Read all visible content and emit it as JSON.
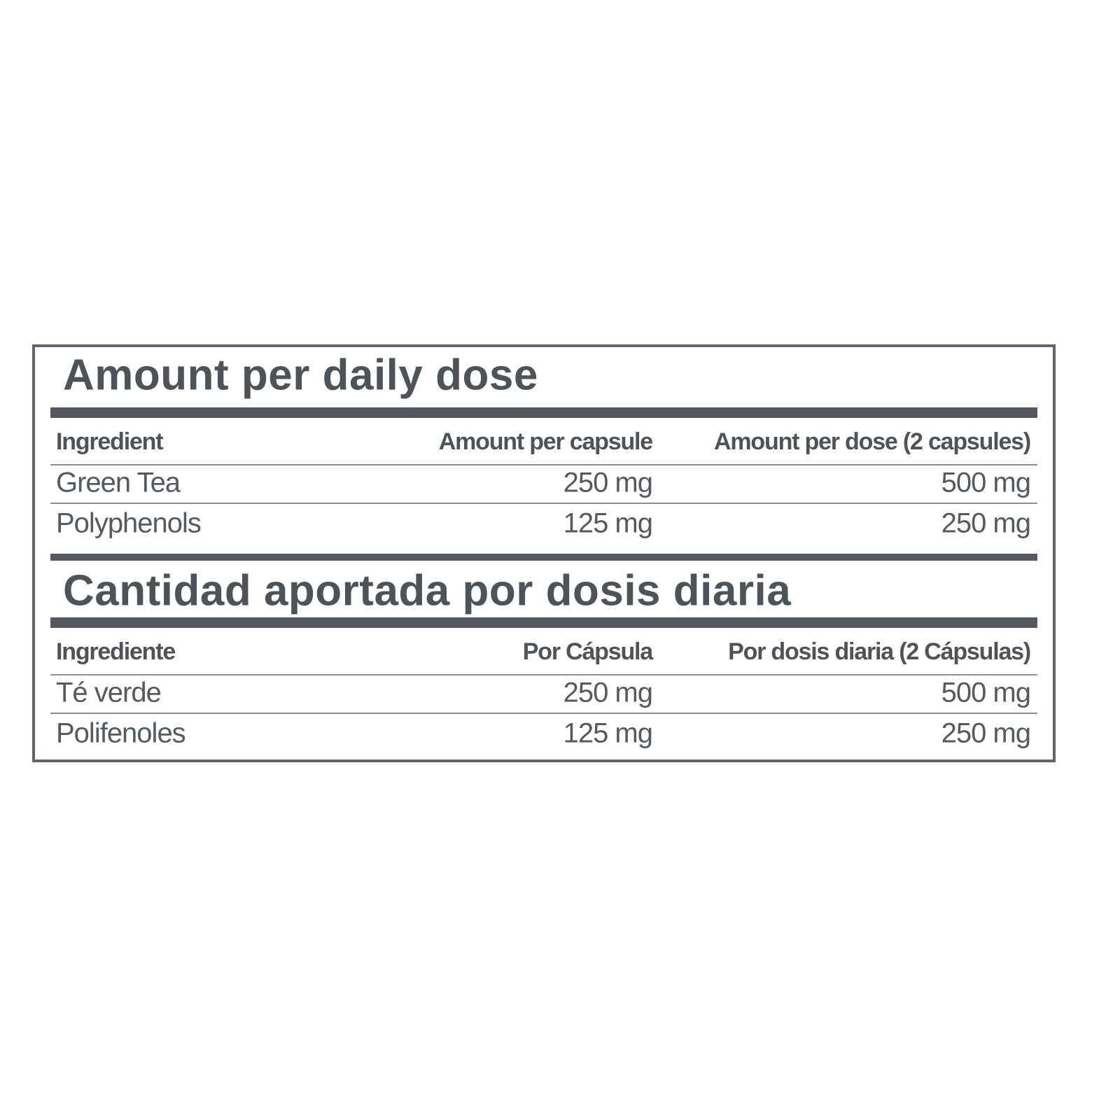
{
  "sections": [
    {
      "title": "Amount per daily dose",
      "header": [
        "Ingredient",
        "Amount per capsule",
        "Amount per dose (2 capsules)"
      ],
      "rows": [
        [
          "Green Tea",
          "250 mg",
          "500 mg"
        ],
        [
          "Polyphenols",
          "125 mg",
          "250 mg"
        ]
      ]
    },
    {
      "title": "Cantidad aportada por dosis diaria",
      "header": [
        "Ingrediente",
        "Por Cápsula",
        "Por dosis diaria (2 Cápsulas)"
      ],
      "rows": [
        [
          "Té verde",
          "250 mg",
          "500 mg"
        ],
        [
          "Polifenoles",
          "125 mg",
          "250 mg"
        ]
      ]
    }
  ]
}
